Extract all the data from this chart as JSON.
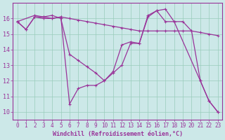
{
  "xlabel": "Windchill (Refroidissement éolien,°C)",
  "line_color": "#993399",
  "background_color": "#cce8e8",
  "grid_color": "#99ccbb",
  "xlim": [
    -0.5,
    23.5
  ],
  "ylim": [
    9.5,
    17.0
  ],
  "xticks": [
    0,
    1,
    2,
    3,
    4,
    5,
    6,
    7,
    8,
    9,
    10,
    11,
    12,
    13,
    14,
    15,
    16,
    17,
    18,
    19,
    20,
    21,
    22,
    23
  ],
  "yticks": [
    10,
    11,
    12,
    13,
    14,
    15,
    16
  ],
  "series1_x": [
    0,
    1,
    2,
    3,
    4,
    5,
    6,
    7,
    8,
    9,
    10,
    11,
    12,
    13,
    14,
    15,
    16,
    17,
    18,
    19,
    20,
    21,
    22,
    23
  ],
  "series1_y": [
    15.8,
    15.3,
    16.1,
    16.1,
    16.0,
    16.1,
    16.0,
    15.9,
    15.8,
    15.7,
    15.6,
    15.5,
    15.4,
    15.3,
    15.2,
    15.2,
    15.2,
    15.2,
    15.2,
    15.2,
    15.2,
    15.1,
    15.0,
    14.9
  ],
  "series2_x": [
    0,
    2,
    3,
    4,
    5,
    6,
    7,
    8,
    9,
    10,
    11,
    12,
    13,
    14,
    15,
    16,
    17,
    18,
    21,
    22,
    23
  ],
  "series2_y": [
    15.8,
    16.2,
    16.1,
    16.2,
    16.0,
    13.7,
    13.3,
    12.9,
    12.5,
    12.0,
    12.6,
    14.3,
    14.5,
    14.4,
    16.1,
    16.5,
    15.8,
    15.8,
    12.0,
    10.7,
    10.0
  ],
  "series3_x": [
    0,
    1,
    2,
    3,
    4,
    5,
    6,
    7,
    8,
    9,
    10,
    11,
    12,
    13,
    14,
    15,
    16,
    17,
    18,
    19,
    20,
    21,
    22,
    23
  ],
  "series3_y": [
    15.8,
    15.3,
    16.1,
    16.0,
    16.0,
    16.1,
    10.5,
    11.5,
    11.7,
    11.7,
    12.0,
    12.5,
    13.0,
    14.4,
    14.4,
    16.2,
    16.5,
    16.6,
    15.8,
    15.8,
    15.2,
    12.0,
    10.7,
    10.0
  ]
}
